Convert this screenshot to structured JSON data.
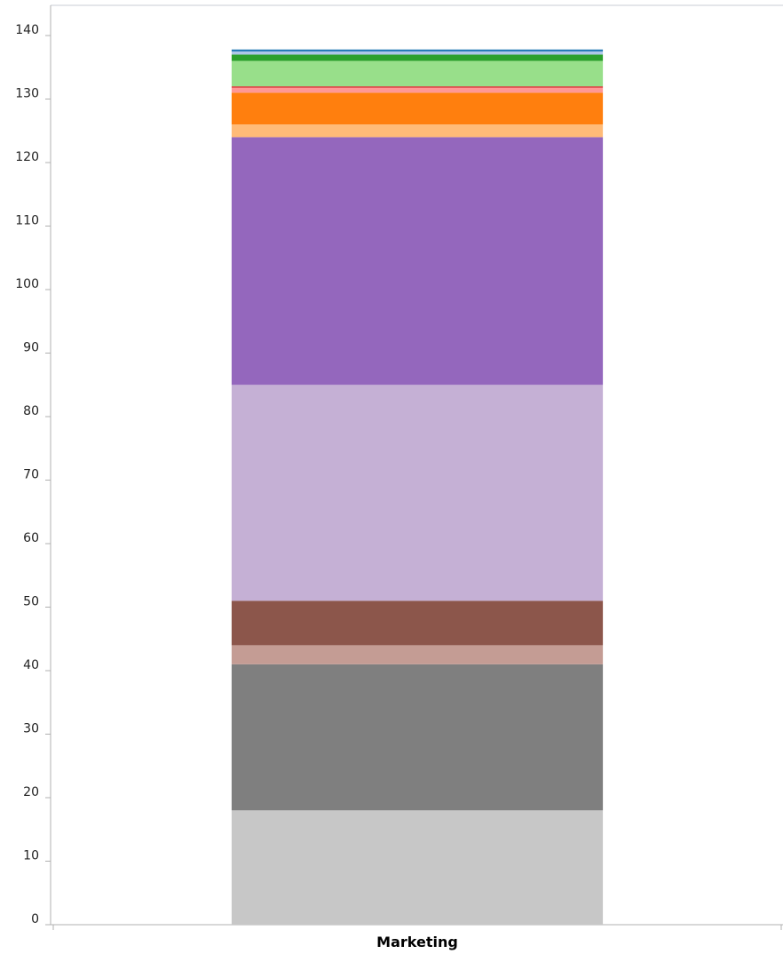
{
  "chart_data": {
    "type": "bar",
    "stacked": true,
    "categories": [
      "Marketing"
    ],
    "ylim": [
      0,
      140
    ],
    "yticks": [
      0,
      10,
      20,
      30,
      40,
      50,
      60,
      70,
      80,
      90,
      100,
      110,
      120,
      130,
      140
    ],
    "grid": false,
    "legend": "none",
    "series": [
      {
        "values": [
          18
        ],
        "color": "#c7c7c7"
      },
      {
        "values": [
          23
        ],
        "color": "#7f7f7f"
      },
      {
        "values": [
          3
        ],
        "color": "#c49c94"
      },
      {
        "values": [
          7
        ],
        "color": "#8c564b"
      },
      {
        "values": [
          34
        ],
        "color": "#c5b0d5"
      },
      {
        "values": [
          39
        ],
        "color": "#9467bd"
      },
      {
        "values": [
          2
        ],
        "color": "#ffbb78"
      },
      {
        "values": [
          5
        ],
        "color": "#ff7f0e"
      },
      {
        "values": [
          0.8
        ],
        "color": "#ff9896"
      },
      {
        "values": [
          0.2
        ],
        "color": "#d62728"
      },
      {
        "values": [
          4
        ],
        "color": "#98df8a"
      },
      {
        "values": [
          1
        ],
        "color": "#2ca02c"
      },
      {
        "values": [
          0.5
        ],
        "color": "#aec7e8"
      },
      {
        "values": [
          0.3
        ],
        "color": "#1f77b4"
      }
    ]
  }
}
